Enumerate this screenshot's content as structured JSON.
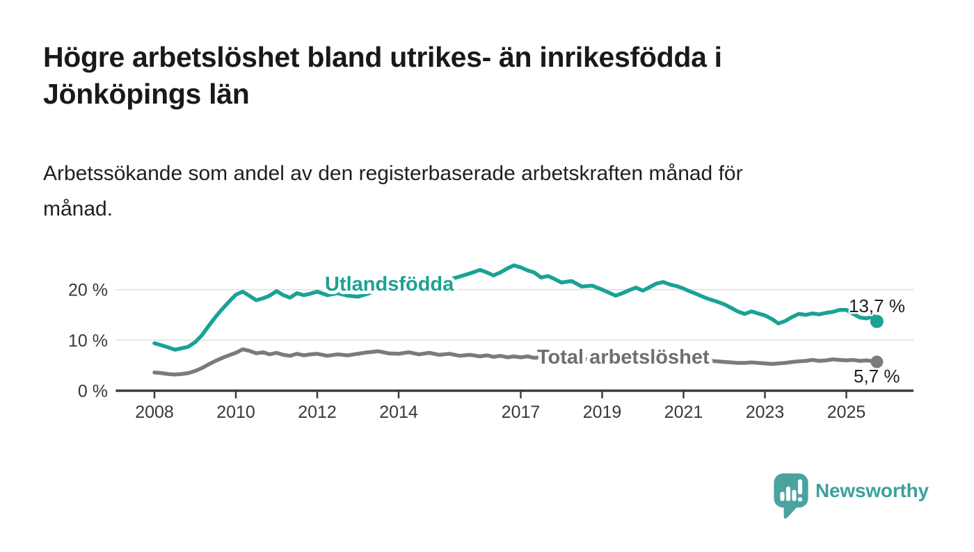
{
  "chart_data": {
    "type": "line",
    "title": "Högre arbetslöshet bland utrikes- än inrikesfödda i\nJönköpings län",
    "subtitle": "Arbetssökande som andel av den registerbaserade arbetskraften månad för\nmånad.",
    "grid": true,
    "x_axis": {
      "ticks": [
        2008,
        2010,
        2012,
        2014,
        2017,
        2019,
        2021,
        2023,
        2025
      ],
      "range": [
        2007.05,
        2026.65
      ]
    },
    "y_axis": {
      "unit": "%",
      "range": [
        0,
        27
      ],
      "ticks": [
        {
          "value": 0,
          "label": "0 %"
        },
        {
          "value": 10,
          "label": "10 %"
        },
        {
          "value": 20,
          "label": "20 %"
        }
      ]
    },
    "x": [
      2008.0,
      2008.17,
      2008.33,
      2008.5,
      2008.67,
      2008.83,
      2009.0,
      2009.17,
      2009.33,
      2009.5,
      2009.67,
      2009.83,
      2010.0,
      2010.17,
      2010.33,
      2010.5,
      2010.67,
      2010.83,
      2011.0,
      2011.17,
      2011.33,
      2011.5,
      2011.67,
      2011.83,
      2012.0,
      2012.25,
      2012.5,
      2012.75,
      2013.0,
      2013.25,
      2013.5,
      2013.75,
      2014.0,
      2014.25,
      2014.5,
      2014.75,
      2015.0,
      2015.25,
      2015.5,
      2015.75,
      2016.0,
      2016.17,
      2016.33,
      2016.5,
      2016.67,
      2016.83,
      2017.0,
      2017.17,
      2017.33,
      2017.5,
      2017.67,
      2017.83,
      2018.0,
      2018.25,
      2018.5,
      2018.75,
      2019.0,
      2019.17,
      2019.33,
      2019.5,
      2019.67,
      2019.83,
      2020.0,
      2020.17,
      2020.33,
      2020.5,
      2020.67,
      2020.83,
      2021.0,
      2021.17,
      2021.33,
      2021.5,
      2021.67,
      2021.83,
      2022.0,
      2022.17,
      2022.33,
      2022.5,
      2022.67,
      2022.83,
      2023.0,
      2023.17,
      2023.33,
      2023.5,
      2023.67,
      2023.83,
      2024.0,
      2024.17,
      2024.33,
      2024.5,
      2024.67,
      2024.83,
      2025.0,
      2025.17,
      2025.33,
      2025.5,
      2025.67,
      2025.75
    ],
    "series": [
      {
        "name": "Utlandsfödda",
        "color": "#1aa294",
        "label_color": "#1aa294",
        "end_value": 13.7,
        "end_label": "13,7 %",
        "values": [
          9.4,
          9.0,
          8.6,
          8.1,
          8.4,
          8.7,
          9.6,
          11.0,
          12.8,
          14.6,
          16.2,
          17.6,
          19.0,
          19.6,
          18.8,
          17.9,
          18.3,
          18.8,
          19.7,
          18.9,
          18.4,
          19.3,
          18.9,
          19.2,
          19.6,
          18.9,
          19.3,
          18.8,
          18.6,
          19.2,
          19.9,
          19.6,
          20.0,
          20.6,
          20.3,
          20.9,
          21.4,
          22.0,
          22.6,
          23.2,
          23.9,
          23.4,
          22.8,
          23.4,
          24.2,
          24.8,
          24.4,
          23.8,
          23.4,
          22.4,
          22.7,
          22.1,
          21.4,
          21.7,
          20.6,
          20.8,
          20.0,
          19.4,
          18.8,
          19.3,
          19.9,
          20.4,
          19.8,
          20.5,
          21.2,
          21.5,
          21.0,
          20.7,
          20.2,
          19.6,
          19.1,
          18.5,
          18.0,
          17.6,
          17.1,
          16.4,
          15.7,
          15.2,
          15.7,
          15.3,
          14.9,
          14.2,
          13.3,
          13.8,
          14.6,
          15.2,
          15.0,
          15.3,
          15.1,
          15.4,
          15.6,
          16.0,
          16.0,
          15.2,
          14.5,
          14.3,
          14.8,
          13.7
        ]
      },
      {
        "name": "Total arbetslöshet",
        "color": "#7b7b7b",
        "label_color": "#6e6e6e",
        "end_value": 5.7,
        "end_label": "5,7 %",
        "values": [
          3.6,
          3.5,
          3.3,
          3.2,
          3.3,
          3.5,
          3.9,
          4.5,
          5.2,
          5.9,
          6.5,
          7.0,
          7.5,
          8.2,
          7.9,
          7.4,
          7.6,
          7.2,
          7.5,
          7.1,
          6.9,
          7.3,
          7.0,
          7.2,
          7.3,
          6.9,
          7.2,
          7.0,
          7.3,
          7.6,
          7.8,
          7.4,
          7.3,
          7.6,
          7.2,
          7.5,
          7.1,
          7.3,
          6.9,
          7.1,
          6.8,
          7.0,
          6.7,
          6.9,
          6.6,
          6.8,
          6.6,
          6.8,
          6.5,
          6.6,
          6.4,
          6.5,
          6.3,
          6.4,
          6.2,
          6.3,
          6.1,
          6.2,
          6.0,
          6.1,
          6.2,
          6.3,
          6.6,
          7.0,
          7.2,
          7.1,
          7.0,
          6.9,
          6.7,
          6.5,
          6.3,
          6.1,
          5.9,
          5.8,
          5.7,
          5.6,
          5.5,
          5.5,
          5.6,
          5.5,
          5.4,
          5.3,
          5.4,
          5.5,
          5.7,
          5.8,
          5.9,
          6.1,
          5.9,
          6.0,
          6.2,
          6.1,
          6.0,
          6.1,
          5.9,
          6.0,
          5.8,
          5.7
        ]
      }
    ]
  },
  "footer": {
    "brand": "Newsworthy",
    "brand_color": "#3ca09d",
    "logo_color": "#4aa3a0"
  }
}
